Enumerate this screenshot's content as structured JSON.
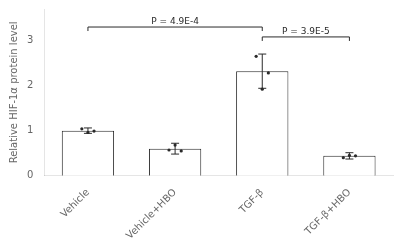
{
  "chart_data": {
    "type": "bar",
    "categories": [
      "Vehicle",
      "Vehicle+HBO",
      "TGF-β",
      "TGF-β+HBO"
    ],
    "values": [
      1.0,
      0.6,
      2.32,
      0.44
    ],
    "errors": [
      0.06,
      0.12,
      0.38,
      0.07
    ],
    "points": [
      [
        1.04,
        0.96,
        0.99
      ],
      [
        0.57,
        0.68,
        0.55
      ],
      [
        2.65,
        1.92,
        2.28
      ],
      [
        0.4,
        0.45,
        0.44
      ]
    ],
    "color": "#ffffff",
    "ylabel": "Relative HIF-1α protein level",
    "ylim": [
      0,
      3.7
    ],
    "yticks": [
      0,
      1,
      2,
      3
    ],
    "grid": false,
    "annotations": [
      {
        "text": "P = 4.9E-4",
        "x1": "Vehicle",
        "x2": "TGF-β",
        "y": 3.3
      },
      {
        "text": "P = 3.9E-5",
        "x1": "TGF-β",
        "x2": "TGF-β+HBO",
        "y": 3.08
      }
    ]
  }
}
